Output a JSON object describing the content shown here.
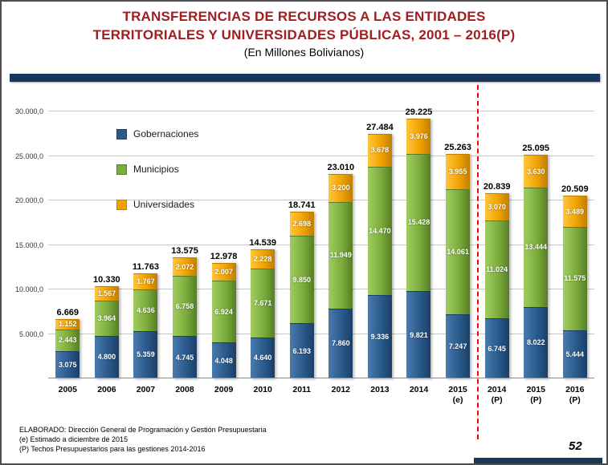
{
  "header": {
    "title_line1": "TRANSFERENCIAS DE RECURSOS A LAS ENTIDADES",
    "title_line2": "TERRITORIALES Y UNIVERSIDADES PÚBLICAS, 2001 – 2016(P)",
    "subtitle": "(En Millones Bolivianos)"
  },
  "chart_data": {
    "type": "bar",
    "stacked": true,
    "title": "Transferencias de recursos a las entidades territoriales y universidades públicas 2001-2016(P)",
    "unit": "Millones de Bolivianos",
    "grid": true,
    "legend_position": "top-left",
    "ylim": [
      0,
      30000
    ],
    "yticks": [
      {
        "label": "30.000,0",
        "value": 30000
      },
      {
        "label": "25.000,0",
        "value": 25000
      },
      {
        "label": "20.000,0",
        "value": 20000
      },
      {
        "label": "15.000,0",
        "value": 15000
      },
      {
        "label": "10.000,0",
        "value": 10000
      },
      {
        "label": "5.000,0",
        "value": 5000
      }
    ],
    "categories": [
      {
        "label": "2005",
        "sub": ""
      },
      {
        "label": "2006",
        "sub": ""
      },
      {
        "label": "2007",
        "sub": ""
      },
      {
        "label": "2008",
        "sub": ""
      },
      {
        "label": "2009",
        "sub": ""
      },
      {
        "label": "2010",
        "sub": ""
      },
      {
        "label": "2011",
        "sub": ""
      },
      {
        "label": "2012",
        "sub": ""
      },
      {
        "label": "2013",
        "sub": ""
      },
      {
        "label": "2014",
        "sub": ""
      },
      {
        "label": "2015",
        "sub": "(e)"
      },
      {
        "label": "2014",
        "sub": "(P)"
      },
      {
        "label": "2015",
        "sub": "(P)"
      },
      {
        "label": "2016",
        "sub": "(P)"
      }
    ],
    "series": [
      {
        "name": "Gobernaciones",
        "color": "#2A5A8C",
        "color_light": "#4A7BAE",
        "color_dark": "#1B3F66",
        "values": [
          3075,
          4800,
          5359,
          4745,
          4048,
          4640,
          6193,
          7860,
          9336,
          9821,
          7247,
          6745,
          8022,
          5444
        ]
      },
      {
        "name": "Municipios",
        "color": "#7BAD3C",
        "color_light": "#A2CC60",
        "color_dark": "#567D26",
        "values": [
          2443,
          3964,
          4636,
          6758,
          6924,
          7671,
          9850,
          11949,
          14470,
          15428,
          14061,
          11024,
          13444,
          11575
        ]
      },
      {
        "name": "Universidades",
        "color": "#F0A202",
        "color_light": "#FFC63C",
        "color_dark": "#C07F00",
        "values": [
          1152,
          1567,
          1767,
          2072,
          2007,
          2228,
          2698,
          3200,
          3678,
          3976,
          3955,
          3070,
          3630,
          3489
        ]
      }
    ],
    "totals": [
      6669,
      10330,
      11763,
      13575,
      12978,
      14539,
      18741,
      23010,
      27484,
      29225,
      25263,
      20839,
      25095,
      20509
    ],
    "separator_after_index": 10
  },
  "footer": {
    "line1": "ELABORADO: Dirección General de Programación y Gestión Presupuestaria",
    "line2": "(e) Estimado a diciembre de 2015",
    "line3": "(P) Techos Presupuestarios para las gestiones 2014-2016",
    "page_number": "52"
  },
  "colors": {
    "title": "#A01D20",
    "accent_bar": "#17375D",
    "separator_line": "#FF0000",
    "gridline": "#C8C8C8"
  }
}
